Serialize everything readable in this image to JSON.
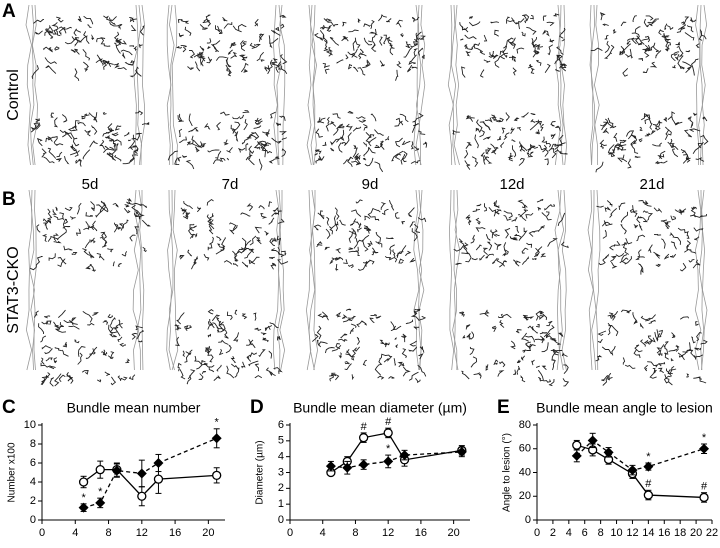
{
  "panel_a": {
    "letter": "A",
    "row_label": "Control"
  },
  "panel_b": {
    "letter": "B",
    "row_label": "STAT3-CKO"
  },
  "time_labels": [
    "5d",
    "7d",
    "9d",
    "12d",
    "21d"
  ],
  "chart_data": [
    {
      "letter": "C",
      "type": "line",
      "title": "Bundle mean number",
      "y_label": "Number x100",
      "x": [
        5,
        7,
        9,
        12,
        14,
        21
      ],
      "xlim": [
        0,
        22
      ],
      "xticks": [
        0,
        4,
        8,
        12,
        16,
        20
      ],
      "ylim": [
        0,
        10
      ],
      "yticks": [
        0,
        2,
        4,
        6,
        8,
        10
      ],
      "series": [
        {
          "marker": "circle",
          "dash": false,
          "color": "#000000",
          "values": [
            4.0,
            5.3,
            5.3,
            2.5,
            4.3,
            4.7
          ],
          "errors": [
            0.6,
            0.9,
            0.7,
            1.0,
            1.5,
            0.8
          ],
          "flags": [
            null,
            null,
            null,
            null,
            null,
            null
          ]
        },
        {
          "marker": "diamond",
          "dash": true,
          "color": "#000000",
          "values": [
            1.3,
            1.8,
            5.2,
            4.9,
            6.0,
            8.6
          ],
          "errors": [
            0.4,
            0.5,
            0.7,
            1.4,
            0.9,
            1.0
          ],
          "flags": [
            "*",
            "*",
            null,
            null,
            null,
            "*"
          ]
        }
      ]
    },
    {
      "letter": "D",
      "type": "line",
      "title": "Bundle mean diameter (µm)",
      "y_label": "Diameter (µm)",
      "x": [
        5,
        7,
        9,
        12,
        14,
        21
      ],
      "xlim": [
        0,
        22
      ],
      "xticks": [
        0,
        4,
        8,
        12,
        16,
        20
      ],
      "ylim": [
        0,
        6
      ],
      "yticks": [
        0,
        1,
        2,
        3,
        4,
        5,
        6
      ],
      "series": [
        {
          "marker": "circle",
          "dash": false,
          "color": "#000000",
          "values": [
            3.0,
            3.7,
            5.2,
            5.5,
            3.8,
            4.4
          ],
          "errors": [
            0.2,
            0.3,
            0.3,
            0.3,
            0.4,
            0.3
          ],
          "flags": [
            null,
            null,
            "#",
            "#",
            null,
            null
          ]
        },
        {
          "marker": "diamond",
          "dash": true,
          "color": "#000000",
          "values": [
            3.4,
            3.3,
            3.5,
            3.7,
            4.1,
            4.3
          ],
          "errors": [
            0.3,
            0.4,
            0.3,
            0.4,
            0.3,
            0.3
          ],
          "flags": [
            null,
            null,
            null,
            "*",
            null,
            null
          ]
        }
      ]
    },
    {
      "letter": "E",
      "type": "line",
      "title": "Bundle mean angle to lesion",
      "y_label": "Angle to lesion (°)",
      "x": [
        5,
        7,
        9,
        12,
        14,
        21
      ],
      "xlim": [
        0,
        22
      ],
      "xticks": [
        0,
        2,
        4,
        6,
        8,
        10,
        12,
        14,
        16,
        18,
        20,
        22
      ],
      "ylim": [
        0,
        80
      ],
      "yticks": [
        0,
        20,
        40,
        60,
        80
      ],
      "series": [
        {
          "marker": "circle",
          "dash": false,
          "color": "#000000",
          "values": [
            63,
            59,
            51,
            39,
            21,
            19
          ],
          "errors": [
            4,
            5,
            4,
            4,
            4,
            4
          ],
          "flags": [
            null,
            null,
            null,
            null,
            "#",
            "#"
          ]
        },
        {
          "marker": "diamond",
          "dash": true,
          "color": "#000000",
          "values": [
            54,
            67,
            57,
            42,
            45,
            60
          ],
          "errors": [
            5,
            6,
            4,
            4,
            3,
            4
          ],
          "flags": [
            null,
            null,
            null,
            null,
            "*",
            "*"
          ]
        }
      ]
    }
  ]
}
